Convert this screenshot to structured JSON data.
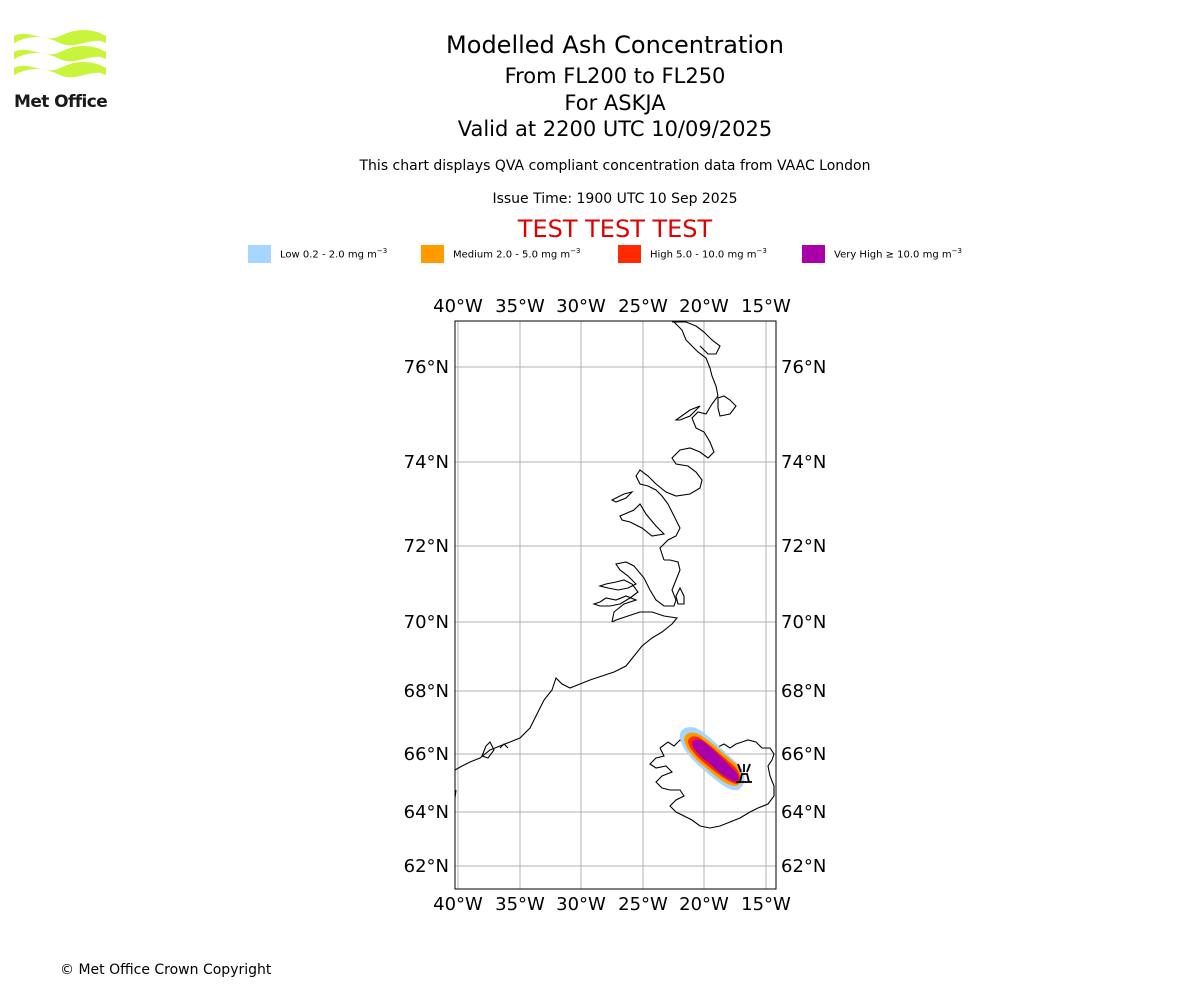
{
  "logo": {
    "text": "Met Office",
    "color": "#c8f53c"
  },
  "title": {
    "main": "Modelled Ash Concentration",
    "level": "From FL200 to FL250",
    "volcano": "For ASKJA",
    "valid": "Valid at 2200 UTC 10/09/2025"
  },
  "info": {
    "compliance": "This chart displays QVA compliant concentration data from VAAC London",
    "issue_time": "Issue Time: 1900 UTC 10 Sep 2025",
    "test_banner": "TEST TEST TEST"
  },
  "legend": [
    {
      "label": "Low 0.2 - 2.0 mg m",
      "exp": "−3",
      "color": "#a6d6ff"
    },
    {
      "label": "Medium 2.0 - 5.0 mg m",
      "exp": "−3",
      "color": "#ff9a00"
    },
    {
      "label": "High 5.0 - 10.0 mg m",
      "exp": "−3",
      "color": "#ff2a00"
    },
    {
      "label": "Very High  ≥  10.0 mg m",
      "exp": "−3",
      "color": "#aa00aa"
    }
  ],
  "map": {
    "lon_labels": [
      "40°W",
      "35°W",
      "30°W",
      "25°W",
      "20°W",
      "15°W"
    ],
    "lat_labels": [
      "76°N",
      "74°N",
      "72°N",
      "70°N",
      "68°N",
      "66°N",
      "64°N",
      "62°N"
    ],
    "volcano_symbol": "volcano-marker"
  },
  "footer": {
    "copyright": "© Met Office Crown Copyright"
  }
}
